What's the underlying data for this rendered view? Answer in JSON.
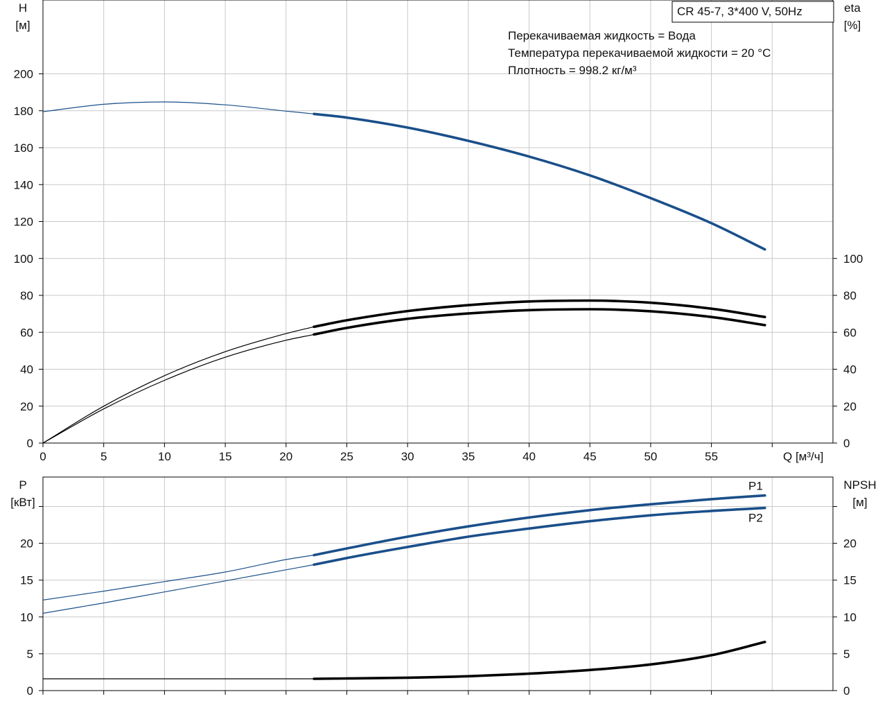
{
  "chart_data": [
    {
      "type": "line",
      "panel": "head_efficiency",
      "title": "CR 45-7, 3*400 V, 50Hz",
      "annotations": [
        "Перекачиваемая жидкость = Вода",
        "Температура перекачиваемой жидкости = 20 °C",
        "Плотность = 998.2 кг/м³"
      ],
      "xlabel": "Q [м³/ч]",
      "xlim": [
        0,
        65
      ],
      "xticks": [
        0,
        5,
        10,
        15,
        20,
        25,
        30,
        35,
        40,
        45,
        50,
        55
      ],
      "xtick_labels": [
        "0",
        "5",
        "10",
        "15",
        "20",
        "25",
        "30",
        "35",
        "40",
        "45",
        "50",
        "55"
      ],
      "ylabel_left": [
        "H",
        "[м]"
      ],
      "ylim_left": [
        0,
        240
      ],
      "yticks_left": [
        0,
        20,
        40,
        60,
        80,
        100,
        120,
        140,
        160,
        180,
        200
      ],
      "ytick_labels_left": [
        "0",
        "20",
        "40",
        "60",
        "80",
        "100",
        "120",
        "140",
        "160",
        "180",
        "200"
      ],
      "ylabel_right": [
        "eta",
        "[%]"
      ],
      "ylim_right": [
        0,
        240
      ],
      "yticks_right": [
        0,
        20,
        40,
        60,
        80,
        100
      ],
      "ytick_labels_right": [
        "0",
        "20",
        "40",
        "60",
        "80",
        "100"
      ],
      "grid": true,
      "series": [
        {
          "color": "#1a4f8a",
          "axis": "left",
          "bold_from_x": 22.3,
          "points": [
            [
              0,
              179.5
            ],
            [
              5,
              183.5
            ],
            [
              10,
              184.8
            ],
            [
              15,
              183.2
            ],
            [
              20,
              179.8
            ],
            [
              22.3,
              178.3
            ],
            [
              25,
              176.3
            ],
            [
              30,
              170.9
            ],
            [
              35,
              163.7
            ],
            [
              40,
              155.2
            ],
            [
              45,
              145.0
            ],
            [
              50,
              132.7
            ],
            [
              55,
              119.1
            ],
            [
              59.4,
              104.9
            ]
          ]
        },
        {
          "color": "#000000",
          "axis": "right",
          "bold_from_x": 22.3,
          "points": [
            [
              0,
              0
            ],
            [
              5,
              20
            ],
            [
              10,
              36.5
            ],
            [
              15,
              49.5
            ],
            [
              20,
              59.3
            ],
            [
              22.3,
              63.0
            ],
            [
              25,
              66.5
            ],
            [
              30,
              71.5
            ],
            [
              35,
              74.7
            ],
            [
              40,
              76.7
            ],
            [
              45,
              77.2
            ],
            [
              50,
              76.0
            ],
            [
              55,
              72.8
            ],
            [
              59.4,
              68.3
            ]
          ]
        },
        {
          "color": "#000000",
          "axis": "right",
          "bold_from_x": 22.3,
          "points": [
            [
              0,
              0
            ],
            [
              5,
              18.5
            ],
            [
              10,
              34
            ],
            [
              15,
              46.5
            ],
            [
              20,
              55.7
            ],
            [
              22.3,
              58.8
            ],
            [
              25,
              62.4
            ],
            [
              30,
              67.3
            ],
            [
              35,
              70.2
            ],
            [
              40,
              72.0
            ],
            [
              45,
              72.5
            ],
            [
              50,
              71.4
            ],
            [
              55,
              68.3
            ],
            [
              59.4,
              63.9
            ]
          ]
        }
      ]
    },
    {
      "type": "line",
      "panel": "power_npsh",
      "xlim": [
        0,
        65
      ],
      "xticks": [
        0,
        5,
        10,
        15,
        20,
        25,
        30,
        35,
        40,
        45,
        50,
        55
      ],
      "ylabel_left": [
        "P",
        "[кВт]"
      ],
      "ylim_left": [
        0,
        29
      ],
      "yticks_left": [
        0,
        5,
        10,
        15,
        20
      ],
      "ytick_labels_left": [
        "0",
        "5",
        "10",
        "15",
        "20"
      ],
      "ylabel_right": [
        "NPSH",
        "[м]"
      ],
      "ylim_right": [
        0,
        29
      ],
      "yticks_right": [
        0,
        5,
        10,
        15,
        20
      ],
      "ytick_labels_right": [
        "0",
        "5",
        "10",
        "15",
        "20"
      ],
      "minor_tick_left": 25,
      "grid": true,
      "series": [
        {
          "name": "P1",
          "color": "#1a4f8a",
          "axis": "left",
          "bold_from_x": 22.3,
          "points": [
            [
              0,
              12.3
            ],
            [
              5,
              13.5
            ],
            [
              10,
              14.8
            ],
            [
              15,
              16.1
            ],
            [
              20,
              17.8
            ],
            [
              22.3,
              18.4
            ],
            [
              25,
              19.3
            ],
            [
              30,
              20.9
            ],
            [
              35,
              22.3
            ],
            [
              40,
              23.5
            ],
            [
              45,
              24.5
            ],
            [
              50,
              25.3
            ],
            [
              55,
              26.0
            ],
            [
              59.4,
              26.5
            ]
          ]
        },
        {
          "name": "P2",
          "color": "#1a4f8a",
          "axis": "left",
          "bold_from_x": 22.3,
          "points": [
            [
              0,
              10.5
            ],
            [
              5,
              11.9
            ],
            [
              10,
              13.4
            ],
            [
              15,
              14.9
            ],
            [
              20,
              16.4
            ],
            [
              22.3,
              17.1
            ],
            [
              25,
              18.0
            ],
            [
              30,
              19.5
            ],
            [
              35,
              20.9
            ],
            [
              40,
              22.0
            ],
            [
              45,
              23.0
            ],
            [
              50,
              23.8
            ],
            [
              55,
              24.4
            ],
            [
              59.4,
              24.8
            ]
          ]
        },
        {
          "color": "#000000",
          "axis": "right",
          "bold_from_x": 22.3,
          "points": [
            [
              0,
              1.6
            ],
            [
              10,
              1.6
            ],
            [
              20,
              1.6
            ],
            [
              22.3,
              1.6
            ],
            [
              25,
              1.65
            ],
            [
              30,
              1.75
            ],
            [
              35,
              1.95
            ],
            [
              40,
              2.3
            ],
            [
              45,
              2.8
            ],
            [
              50,
              3.55
            ],
            [
              55,
              4.8
            ],
            [
              59.4,
              6.6
            ]
          ]
        }
      ]
    }
  ]
}
